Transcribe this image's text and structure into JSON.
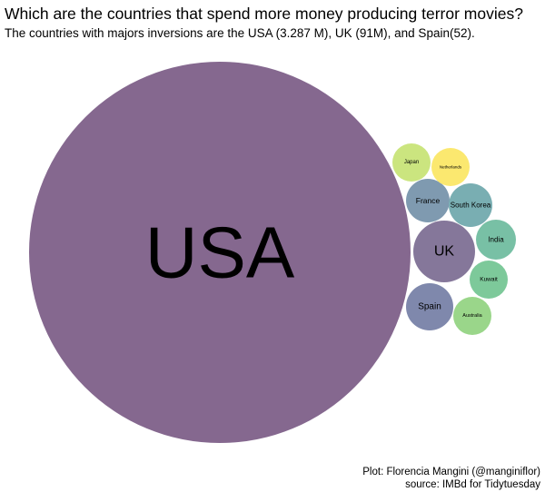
{
  "title": "Which are the countries that spend more money producing terror movies?",
  "subtitle": "The countries with majors inversions are the USA (3.287 M), UK (91M), and Spain(52).",
  "caption": {
    "line1": "Plot: Florencia Mangini (@manginiflor)",
    "line2": "source: IMBd for Tidytuesday"
  },
  "chart_data": {
    "type": "bubble",
    "unit": "M",
    "series": [
      {
        "label": "USA",
        "value": 3287,
        "color": "#85688f"
      },
      {
        "label": "UK",
        "value": 91,
        "color": "#85779a"
      },
      {
        "label": "Spain",
        "value": 52,
        "color": "#7f88ac"
      },
      {
        "label": "France",
        "value": 43,
        "color": "#7f9ab0"
      },
      {
        "label": "South Korea",
        "value": 47,
        "color": "#79aeb2"
      },
      {
        "label": "India",
        "value": 43,
        "color": "#78c0a5"
      },
      {
        "label": "Kuwait",
        "value": 40,
        "color": "#7dc99a"
      },
      {
        "label": "Australia",
        "value": 37,
        "color": "#9ad68a"
      },
      {
        "label": "Japan",
        "value": 36,
        "color": "#cbe57f"
      },
      {
        "label": "Netherlands",
        "value": 35,
        "color": "#fbe86f"
      }
    ]
  }
}
